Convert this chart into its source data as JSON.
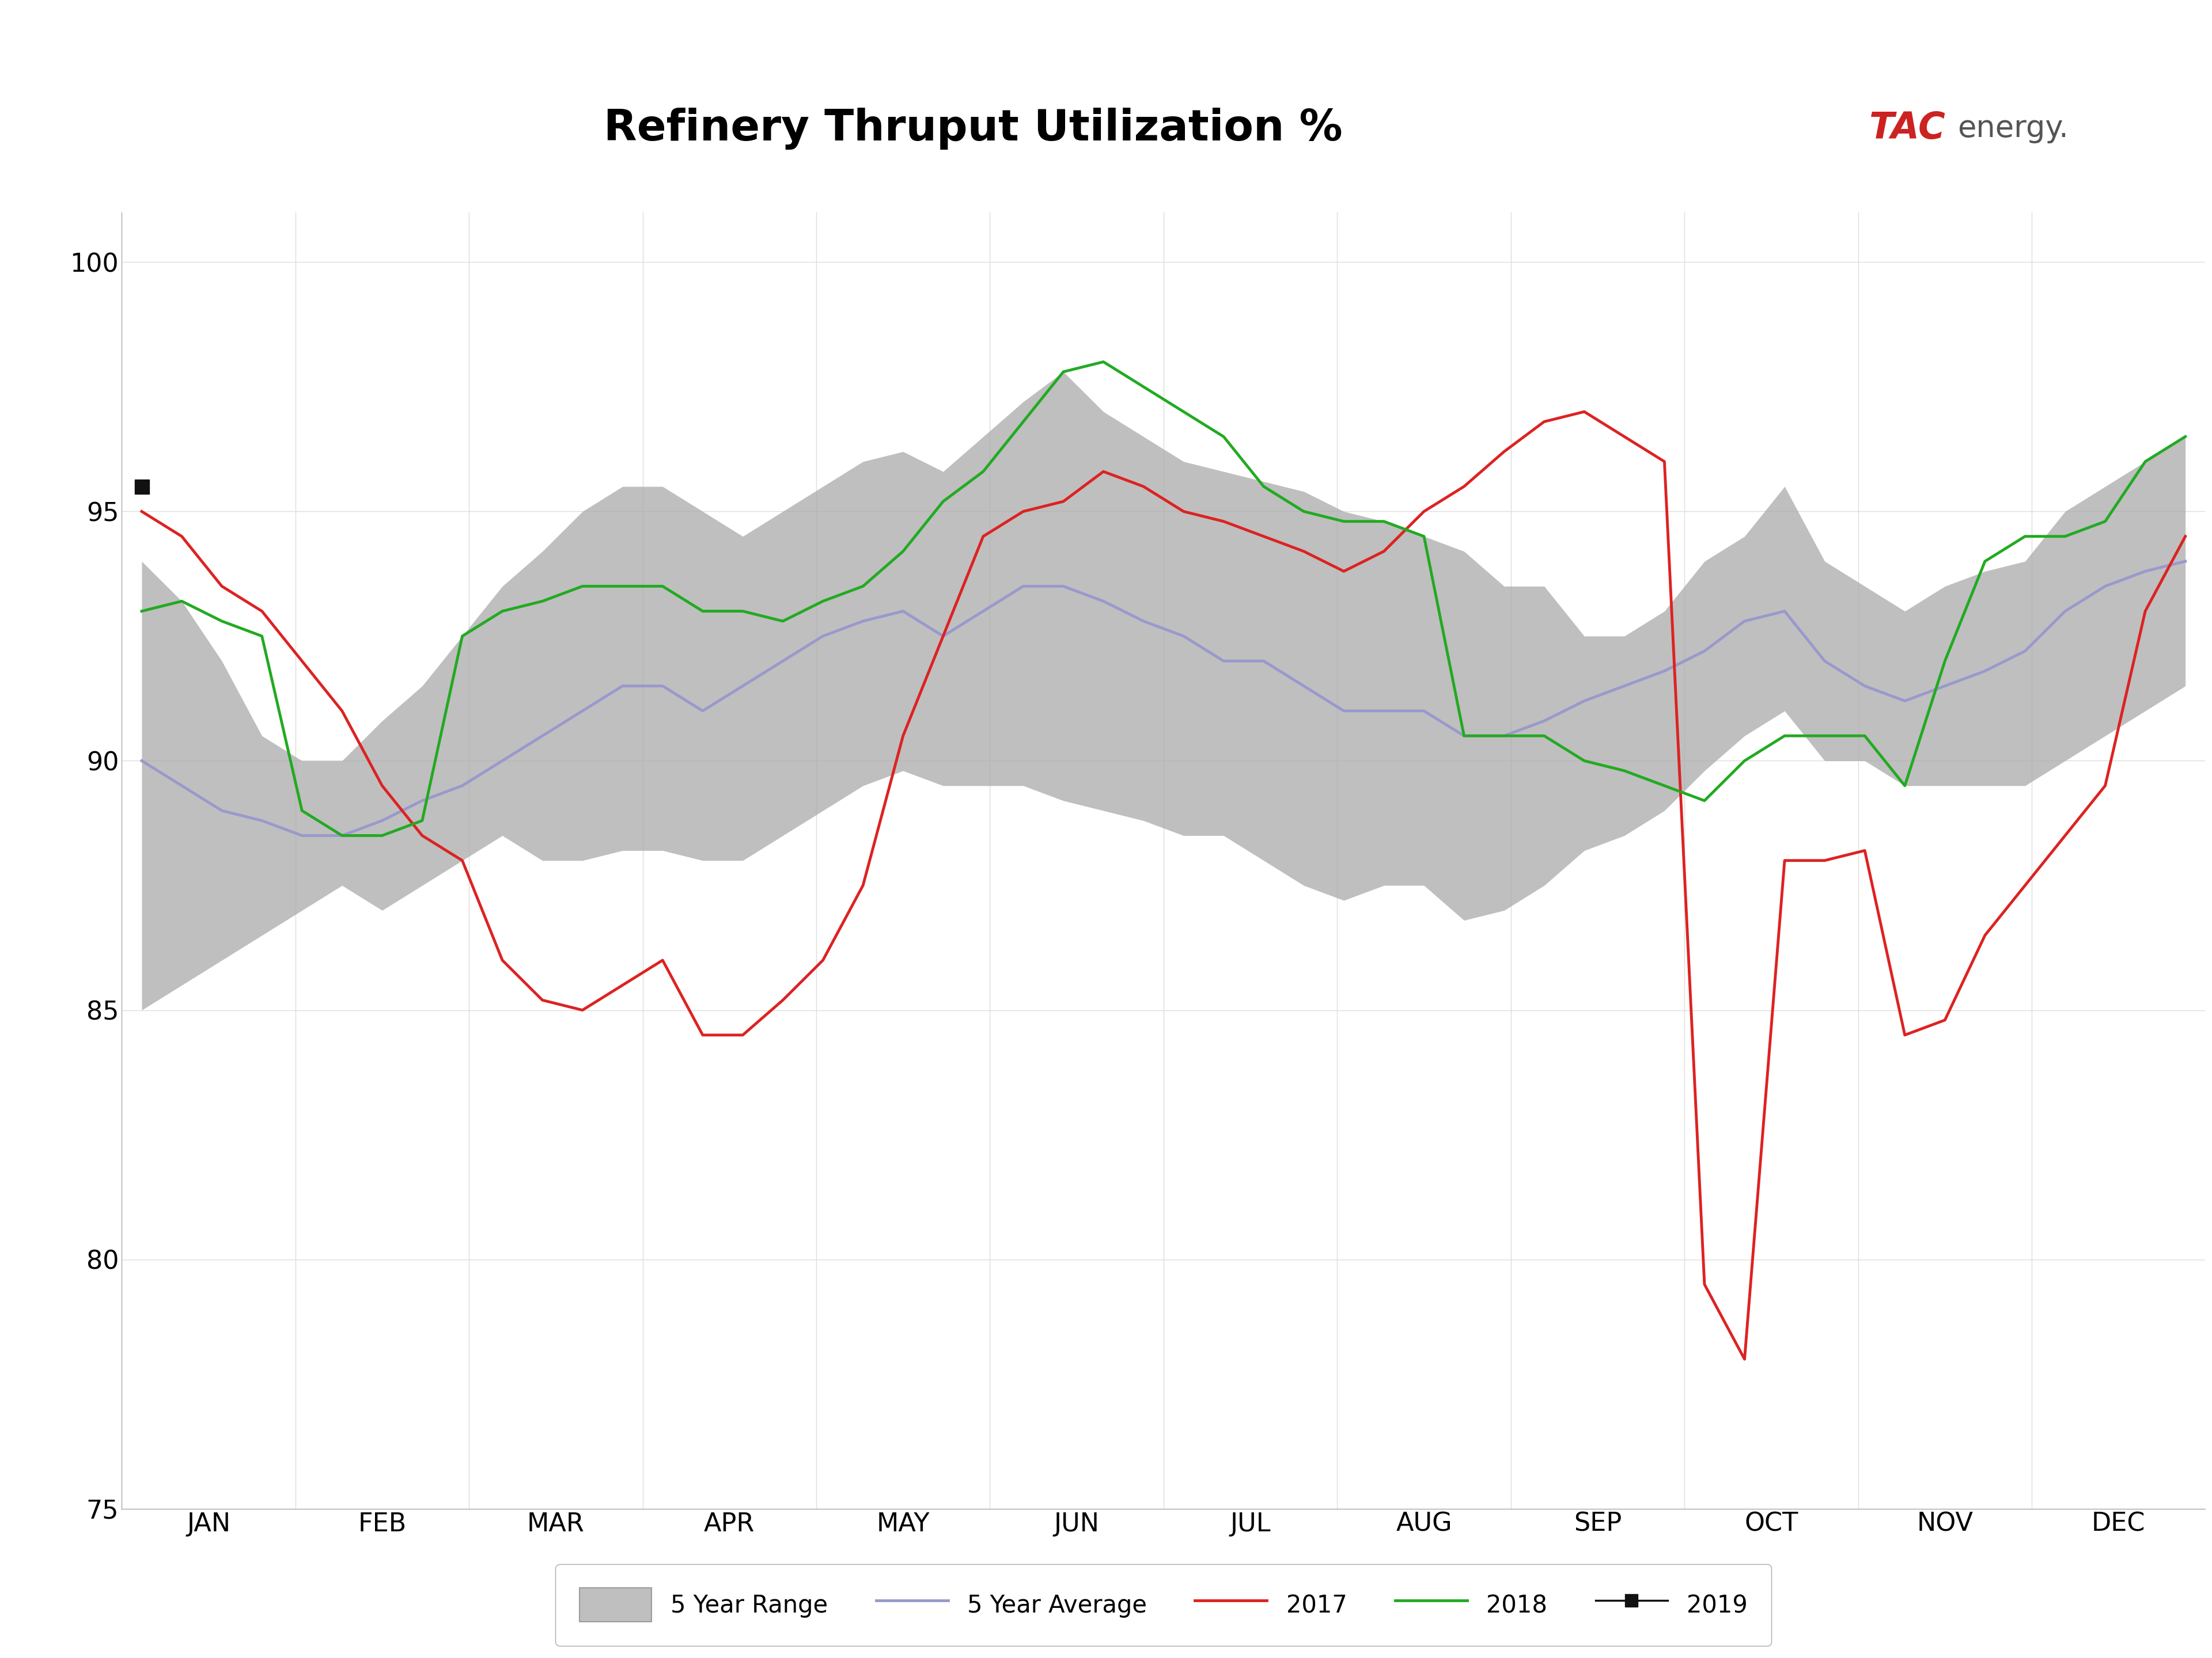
{
  "title": "Refinery Thruput Utilization %",
  "title_bg_color": "#b8bcc0",
  "title_bar_color": "#1756a9",
  "title_text_color": "#000000",
  "bg_color": "#ffffff",
  "ylim": [
    75,
    101
  ],
  "yticks": [
    75,
    80,
    85,
    90,
    95,
    100
  ],
  "months": [
    "JAN",
    "FEB",
    "MAR",
    "APR",
    "MAY",
    "JUN",
    "AUG",
    "SEP",
    "OCT",
    "NOV",
    "DEC"
  ],
  "month_labels": [
    "JAN",
    "FEB",
    "MAR",
    "APR",
    "MAY",
    "JUN",
    "AUG",
    "SEP",
    "OCT",
    "NOV",
    "DEC"
  ],
  "n_points": 52,
  "range_high": [
    94.0,
    93.2,
    92.0,
    90.5,
    90.0,
    90.0,
    90.8,
    91.5,
    92.5,
    93.5,
    94.2,
    95.0,
    95.5,
    95.5,
    95.0,
    94.5,
    95.0,
    95.5,
    96.0,
    96.2,
    95.8,
    96.5,
    97.2,
    97.8,
    97.0,
    96.5,
    96.0,
    95.8,
    95.6,
    95.4,
    95.0,
    94.8,
    94.5,
    94.2,
    93.5,
    93.5,
    92.5,
    92.5,
    93.0,
    94.0,
    94.5,
    95.5,
    94.0,
    93.5,
    93.0,
    93.5,
    93.8,
    94.0,
    95.0,
    95.5,
    96.0,
    96.5
  ],
  "range_low": [
    85.0,
    85.5,
    86.0,
    86.5,
    87.0,
    87.5,
    87.0,
    87.5,
    88.0,
    88.5,
    88.0,
    88.0,
    88.2,
    88.2,
    88.0,
    88.0,
    88.5,
    89.0,
    89.5,
    89.8,
    89.5,
    89.5,
    89.5,
    89.2,
    89.0,
    88.8,
    88.5,
    88.5,
    88.0,
    87.5,
    87.2,
    87.5,
    87.5,
    86.8,
    87.0,
    87.5,
    88.2,
    88.5,
    89.0,
    89.8,
    90.5,
    91.0,
    90.0,
    90.0,
    89.5,
    89.5,
    89.5,
    89.5,
    90.0,
    90.5,
    91.0,
    91.5
  ],
  "avg_5yr": [
    90.0,
    89.5,
    89.0,
    88.8,
    88.5,
    88.5,
    88.8,
    89.2,
    89.5,
    90.0,
    90.5,
    91.0,
    91.5,
    91.5,
    91.0,
    91.5,
    92.0,
    92.5,
    92.8,
    93.0,
    92.5,
    93.0,
    93.5,
    93.5,
    93.2,
    92.8,
    92.5,
    92.0,
    92.0,
    91.5,
    91.0,
    91.0,
    91.0,
    90.5,
    90.5,
    90.8,
    91.2,
    91.5,
    91.8,
    92.2,
    92.8,
    93.0,
    92.0,
    91.5,
    91.2,
    91.5,
    91.8,
    92.2,
    93.0,
    93.5,
    93.8,
    94.0
  ],
  "y2017": [
    95.0,
    94.5,
    93.5,
    93.0,
    92.0,
    91.0,
    89.5,
    88.5,
    88.0,
    86.0,
    85.2,
    85.0,
    85.5,
    86.0,
    84.5,
    84.5,
    85.2,
    86.0,
    87.5,
    90.5,
    92.5,
    94.5,
    95.0,
    95.2,
    95.8,
    95.5,
    95.0,
    94.8,
    94.5,
    94.2,
    93.8,
    94.2,
    95.0,
    95.5,
    96.2,
    96.8,
    97.0,
    96.5,
    96.0,
    79.5,
    78.0,
    88.0,
    88.0,
    88.2,
    84.5,
    84.8,
    86.5,
    87.5,
    88.5,
    89.5,
    93.0,
    94.5
  ],
  "y2018": [
    93.0,
    93.2,
    92.8,
    92.5,
    89.0,
    88.5,
    88.5,
    88.8,
    92.5,
    93.0,
    93.2,
    93.5,
    93.5,
    93.5,
    93.0,
    93.0,
    92.8,
    93.2,
    93.5,
    94.2,
    95.2,
    95.8,
    96.8,
    97.8,
    98.0,
    97.5,
    97.0,
    96.5,
    95.5,
    95.0,
    94.8,
    94.8,
    94.5,
    90.5,
    90.5,
    90.5,
    90.0,
    89.8,
    89.5,
    89.2,
    90.0,
    90.5,
    90.5,
    90.5,
    89.5,
    92.0,
    94.0,
    94.5,
    94.5,
    94.8,
    96.0,
    96.5
  ],
  "y2019_x": [
    0
  ],
  "y2019_y": [
    95.5
  ],
  "color_range_fill": "#aaaaaa",
  "color_range_edge": "#aaaaaa",
  "color_avg": "#9999cc",
  "color_2017": "#dd2222",
  "color_2018": "#22aa22",
  "color_2019": "#111111",
  "line_width": 3.0,
  "tac_color_tac": "#cc2222",
  "tac_color_energy": "#555555"
}
